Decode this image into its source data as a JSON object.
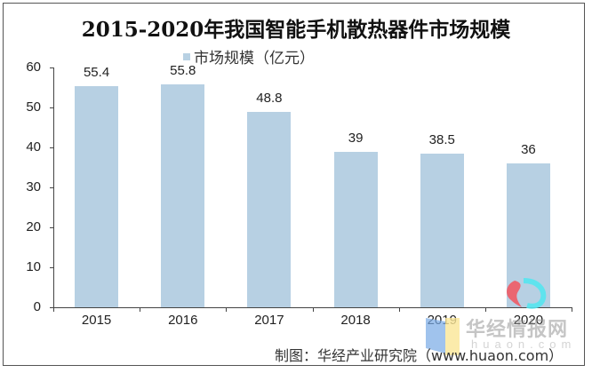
{
  "title": "2015-2020年我国智能手机散热器件市场规模",
  "legend": {
    "label": "市场规模（亿元）",
    "color": "#b7d0e3"
  },
  "source": "制图：华经产业研究院（www.huaon.com）",
  "watermark": {
    "text": "华经情报网",
    "sub": "huaon.com"
  },
  "chart_data": {
    "type": "bar",
    "title": "2015-2020年我国智能手机散热器件市场规模",
    "xlabel": "",
    "ylabel": "",
    "categories": [
      "2015",
      "2016",
      "2017",
      "2018",
      "2019",
      "2020"
    ],
    "series": [
      {
        "name": "市场规模（亿元）",
        "values": [
          55.4,
          55.8,
          48.8,
          39,
          38.5,
          36
        ]
      }
    ],
    "value_labels": [
      "55.4",
      "55.8",
      "48.8",
      "39",
      "38.5",
      "36"
    ],
    "ylim": [
      0,
      60
    ],
    "yticks": [
      0,
      10,
      20,
      30,
      40,
      50,
      60
    ],
    "grid": false,
    "legend_position": "top",
    "bar_color": "#b7d0e3"
  }
}
